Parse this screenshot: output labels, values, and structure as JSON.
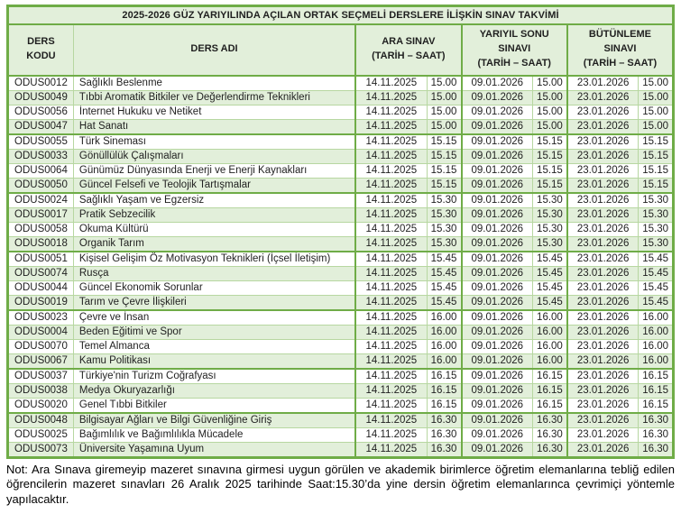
{
  "title": "2025-2026 GÜZ YARIYILINDA AÇILAN ORTAK SEÇMELİ DERSLERE İLİŞKİN SINAV TAKVİMİ",
  "header": {
    "ders_kodu": "DERS\nKODU",
    "ders_adi": "DERS ADI",
    "ara_sinav": "ARA SINAV\n(TARİH – SAAT)",
    "yariyil_sonu": "YARIYIL SONU\nSINAVI\n(TARİH – SAAT)",
    "butunleme": "BÜTÜNLEME\nSINAVI\n(TARİH – SAAT)"
  },
  "rows": [
    {
      "group": 1,
      "code": "ODUS0012",
      "name": "Sağlıklı Beslenme",
      "ara_date": "14.11.2025",
      "ara_time": "15.00",
      "final_date": "09.01.2026",
      "final_time": "15.00",
      "makeup_date": "23.01.2026",
      "makeup_time": "15.00"
    },
    {
      "group": 1,
      "code": "ODUS0049",
      "name": "Tıbbi Aromatik Bitkiler ve Değerlendirme Teknikleri",
      "ara_date": "14.11.2025",
      "ara_time": "15.00",
      "final_date": "09.01.2026",
      "final_time": "15.00",
      "makeup_date": "23.01.2026",
      "makeup_time": "15.00"
    },
    {
      "group": 1,
      "code": "ODUS0056",
      "name": "İnternet Hukuku ve Netiket",
      "ara_date": "14.11.2025",
      "ara_time": "15.00",
      "final_date": "09.01.2026",
      "final_time": "15.00",
      "makeup_date": "23.01.2026",
      "makeup_time": "15.00"
    },
    {
      "group": 1,
      "code": "ODUS0047",
      "name": "Hat Sanatı",
      "ara_date": "14.11.2025",
      "ara_time": "15.00",
      "final_date": "09.01.2026",
      "final_time": "15.00",
      "makeup_date": "23.01.2026",
      "makeup_time": "15.00"
    },
    {
      "group": 2,
      "code": "ODUS0055",
      "name": "Türk Sineması",
      "ara_date": "14.11.2025",
      "ara_time": "15.15",
      "final_date": "09.01.2026",
      "final_time": "15.15",
      "makeup_date": "23.01.2026",
      "makeup_time": "15.15"
    },
    {
      "group": 2,
      "code": "ODUS0033",
      "name": "Gönüllülük Çalışmaları",
      "ara_date": "14.11.2025",
      "ara_time": "15.15",
      "final_date": "09.01.2026",
      "final_time": "15.15",
      "makeup_date": "23.01.2026",
      "makeup_time": "15.15"
    },
    {
      "group": 2,
      "code": "ODUS0064",
      "name": "Günümüz Dünyasında Enerji ve Enerji Kaynakları",
      "ara_date": "14.11.2025",
      "ara_time": "15.15",
      "final_date": "09.01.2026",
      "final_time": "15.15",
      "makeup_date": "23.01.2026",
      "makeup_time": "15.15"
    },
    {
      "group": 2,
      "code": "ODUS0050",
      "name": "Güncel Felsefi ve Teolojik Tartışmalar",
      "ara_date": "14.11.2025",
      "ara_time": "15.15",
      "final_date": "09.01.2026",
      "final_time": "15.15",
      "makeup_date": "23.01.2026",
      "makeup_time": "15.15"
    },
    {
      "group": 3,
      "code": "ODUS0024",
      "name": "Sağlıklı Yaşam ve Egzersiz",
      "ara_date": "14.11.2025",
      "ara_time": "15.30",
      "final_date": "09.01.2026",
      "final_time": "15.30",
      "makeup_date": "23.01.2026",
      "makeup_time": "15.30"
    },
    {
      "group": 3,
      "code": "ODUS0017",
      "name": "Pratik Sebzecilik",
      "ara_date": "14.11.2025",
      "ara_time": "15.30",
      "final_date": "09.01.2026",
      "final_time": "15.30",
      "makeup_date": "23.01.2026",
      "makeup_time": "15.30"
    },
    {
      "group": 3,
      "code": "ODUS0058",
      "name": "Okuma Kültürü",
      "ara_date": "14.11.2025",
      "ara_time": "15.30",
      "final_date": "09.01.2026",
      "final_time": "15.30",
      "makeup_date": "23.01.2026",
      "makeup_time": "15.30"
    },
    {
      "group": 3,
      "code": "ODUS0018",
      "name": "Organik Tarım",
      "ara_date": "14.11.2025",
      "ara_time": "15.30",
      "final_date": "09.01.2026",
      "final_time": "15.30",
      "makeup_date": "23.01.2026",
      "makeup_time": "15.30"
    },
    {
      "group": 4,
      "code": "ODUS0051",
      "name": "Kişisel Gelişim Öz Motivasyon Teknikleri (İçsel İletişim)",
      "ara_date": "14.11.2025",
      "ara_time": "15.45",
      "final_date": "09.01.2026",
      "final_time": "15.45",
      "makeup_date": "23.01.2026",
      "makeup_time": "15.45"
    },
    {
      "group": 4,
      "code": "ODUS0074",
      "name": "Rusça",
      "ara_date": "14.11.2025",
      "ara_time": "15.45",
      "final_date": "09.01.2026",
      "final_time": "15.45",
      "makeup_date": "23.01.2026",
      "makeup_time": "15.45"
    },
    {
      "group": 4,
      "code": "ODUS0044",
      "name": "Güncel Ekonomik Sorunlar",
      "ara_date": "14.11.2025",
      "ara_time": "15.45",
      "final_date": "09.01.2026",
      "final_time": "15.45",
      "makeup_date": "23.01.2026",
      "makeup_time": "15.45"
    },
    {
      "group": 4,
      "code": "ODUS0019",
      "name": "Tarım ve Çevre İlişkileri",
      "ara_date": "14.11.2025",
      "ara_time": "15.45",
      "final_date": "09.01.2026",
      "final_time": "15.45",
      "makeup_date": "23.01.2026",
      "makeup_time": "15.45"
    },
    {
      "group": 5,
      "code": "ODUS0023",
      "name": "Çevre ve İnsan",
      "ara_date": "14.11.2025",
      "ara_time": "16.00",
      "final_date": "09.01.2026",
      "final_time": "16.00",
      "makeup_date": "23.01.2026",
      "makeup_time": "16.00"
    },
    {
      "group": 5,
      "code": "ODUS0004",
      "name": "Beden Eğitimi ve Spor",
      "ara_date": "14.11.2025",
      "ara_time": "16.00",
      "final_date": "09.01.2026",
      "final_time": "16.00",
      "makeup_date": "23.01.2026",
      "makeup_time": "16.00"
    },
    {
      "group": 5,
      "code": "ODUS0070",
      "name": "Temel Almanca",
      "ara_date": "14.11.2025",
      "ara_time": "16.00",
      "final_date": "09.01.2026",
      "final_time": "16.00",
      "makeup_date": "23.01.2026",
      "makeup_time": "16.00"
    },
    {
      "group": 5,
      "code": "ODUS0067",
      "name": "Kamu Politikası",
      "ara_date": "14.11.2025",
      "ara_time": "16.00",
      "final_date": "09.01.2026",
      "final_time": "16.00",
      "makeup_date": "23.01.2026",
      "makeup_time": "16.00"
    },
    {
      "group": 6,
      "code": "ODUS0037",
      "name": "Türkiye'nin Turizm Coğrafyası",
      "ara_date": "14.11.2025",
      "ara_time": "16.15",
      "final_date": "09.01.2026",
      "final_time": "16.15",
      "makeup_date": "23.01.2026",
      "makeup_time": "16.15"
    },
    {
      "group": 6,
      "code": "ODUS0038",
      "name": "Medya Okuryazarlığı",
      "ara_date": "14.11.2025",
      "ara_time": "16.15",
      "final_date": "09.01.2026",
      "final_time": "16.15",
      "makeup_date": "23.01.2026",
      "makeup_time": "16.15"
    },
    {
      "group": 6,
      "code": "ODUS0020",
      "name": "Genel Tıbbi Bitkiler",
      "ara_date": "14.11.2025",
      "ara_time": "16.15",
      "final_date": "09.01.2026",
      "final_time": "16.15",
      "makeup_date": "23.01.2026",
      "makeup_time": "16.15"
    },
    {
      "group": 7,
      "code": "ODUS0048",
      "name": "Bilgisayar Ağları ve Bilgi Güvenliğine Giriş",
      "ara_date": "14.11.2025",
      "ara_time": "16.30",
      "final_date": "09.01.2026",
      "final_time": "16.30",
      "makeup_date": "23.01.2026",
      "makeup_time": "16.30"
    },
    {
      "group": 7,
      "code": "ODUS0025",
      "name": "Bağımlılık ve Bağımlılıkla Mücadele",
      "ara_date": "14.11.2025",
      "ara_time": "16.30",
      "final_date": "09.01.2026",
      "final_time": "16.30",
      "makeup_date": "23.01.2026",
      "makeup_time": "16.30"
    },
    {
      "group": 7,
      "code": "ODUS0073",
      "name": "Üniversite Yaşamına Uyum",
      "ara_date": "14.11.2025",
      "ara_time": "16.30",
      "final_date": "09.01.2026",
      "final_time": "16.30",
      "makeup_date": "23.01.2026",
      "makeup_time": "16.30"
    }
  ],
  "note": "Not: Ara Sınava giremeyip mazeret sınavına girmesi uygun görülen ve akademik birimlerce öğretim elemanlarına tebliğ edilen öğrencilerin mazeret sınavları 26 Aralık 2025 tarihinde Saat:15.30’da yine dersin öğretim elemanlarınca çevrimiçi yöntemle yapılacaktır.",
  "colors": {
    "border_green": "#6FAC47",
    "thin_border_green": "#B7D7A1",
    "row_fill_green": "#E2EFDA"
  }
}
